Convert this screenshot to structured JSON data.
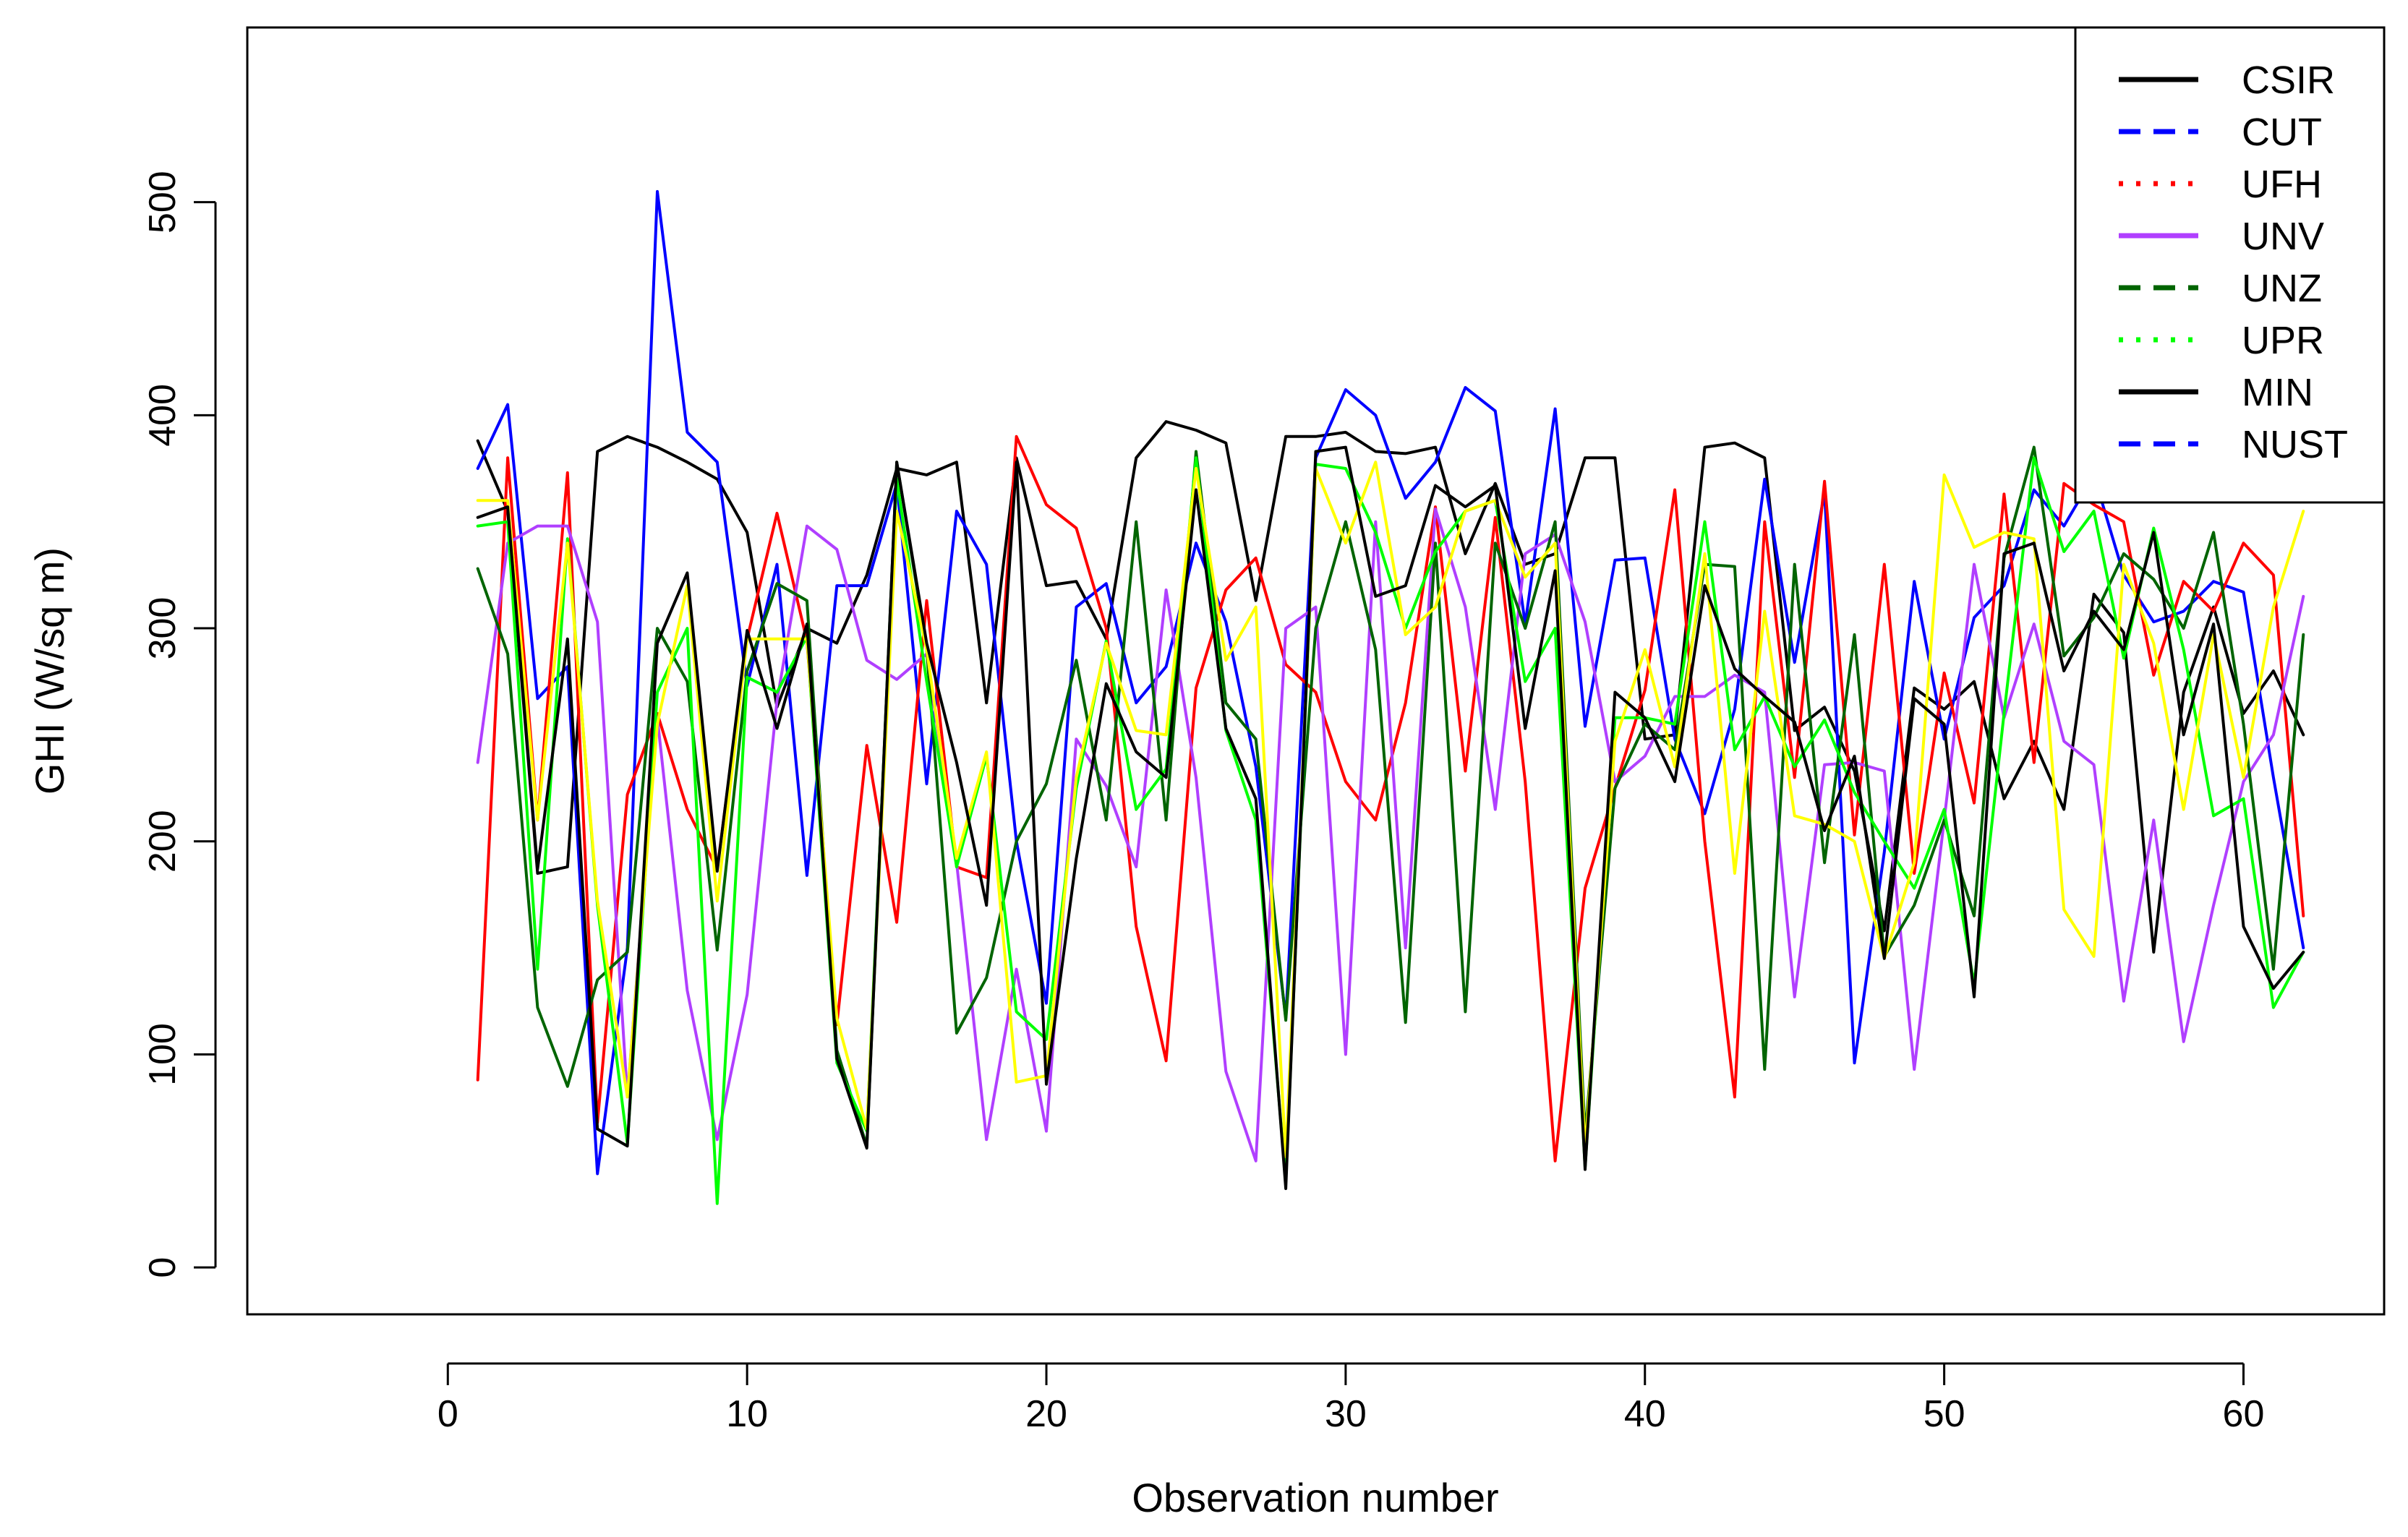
{
  "chart_data": {
    "type": "line",
    "title": "",
    "xlabel": "Observation number",
    "ylabel": "GHI (W/sq m)",
    "xlim": [
      -6.7,
      64.7
    ],
    "ylim": [
      -22,
      582
    ],
    "xticks": [
      0,
      10,
      20,
      30,
      40,
      50,
      60
    ],
    "yticks": [
      0,
      100,
      200,
      300,
      400,
      500
    ],
    "grid": false,
    "legend_position": "top-right",
    "legend": [
      {
        "name": "CSIR",
        "color": "#000000",
        "style": "solid"
      },
      {
        "name": "CUT",
        "color": "#0000ff",
        "style": "dashed"
      },
      {
        "name": "UFH",
        "color": "#ff0000",
        "style": "dotted"
      },
      {
        "name": "UNV",
        "color": "#b03fff",
        "style": "solid"
      },
      {
        "name": "UNZ",
        "color": "#006400",
        "style": "dashed"
      },
      {
        "name": "UPR",
        "color": "#00ff00",
        "style": "dotted"
      },
      {
        "name": "MIN",
        "color": "#000000",
        "style": "solid"
      },
      {
        "name": "NUST",
        "color": "#0000ff",
        "style": "dashed"
      }
    ],
    "x": [
      1,
      2,
      3,
      4,
      5,
      6,
      7,
      8,
      9,
      10,
      11,
      12,
      13,
      14,
      15,
      16,
      17,
      18,
      19,
      20,
      21,
      22,
      23,
      24,
      25,
      26,
      27,
      28,
      29,
      30,
      31,
      32,
      33,
      34,
      35,
      36,
      37,
      38,
      39,
      40,
      41,
      42,
      43,
      44,
      45,
      46,
      47,
      48,
      49,
      50,
      51,
      52,
      53,
      54,
      55,
      56,
      57,
      58,
      59,
      60,
      61,
      62
    ],
    "series": [
      {
        "name": "Black (upper)",
        "color": "#000000",
        "values": [
          388,
          355,
          185,
          188,
          383,
          390,
          385,
          378,
          370,
          345,
          263,
          300,
          293,
          325,
          375,
          372,
          378,
          265,
          380,
          320,
          322,
          295,
          380,
          397,
          393,
          387,
          313,
          390,
          390,
          392,
          383,
          382,
          385,
          335,
          368,
          330,
          335,
          380,
          380,
          248,
          250,
          385,
          387,
          380,
          252,
          263,
          233,
          158,
          272,
          262,
          275,
          220,
          247,
          215,
          316,
          298,
          148,
          270,
          310,
          260,
          280,
          250
        ]
      },
      {
        "name": "Blue",
        "color": "#0000ff",
        "values": [
          375,
          405,
          267,
          282,
          44,
          150,
          505,
          392,
          378,
          273,
          330,
          184,
          320,
          320,
          368,
          227,
          355,
          330,
          200,
          124,
          310,
          321,
          265,
          282,
          340,
          303,
          235,
          117,
          380,
          412,
          400,
          361,
          378,
          413,
          402,
          302,
          403,
          254,
          332,
          333,
          248,
          213,
          262,
          370,
          284,
          364,
          96,
          195,
          322,
          248,
          305,
          320,
          365,
          348,
          372,
          325,
          303,
          308,
          322,
          317,
          230,
          150
        ]
      },
      {
        "name": "Red",
        "color": "#ff0000",
        "values": [
          88,
          380,
          210,
          373,
          68,
          222,
          260,
          215,
          187,
          295,
          354,
          294,
          114,
          245,
          162,
          313,
          188,
          183,
          390,
          358,
          347,
          300,
          160,
          97,
          272,
          318,
          333,
          283,
          270,
          228,
          210,
          265,
          357,
          233,
          352,
          228,
          50,
          178,
          225,
          271,
          365,
          200,
          80,
          350,
          230,
          369,
          203,
          330,
          185,
          279,
          218,
          363,
          237,
          368,
          358,
          350,
          278,
          322,
          308,
          340,
          325,
          165
        ]
      },
      {
        "name": "Purple",
        "color": "#b03fff",
        "values": [
          237,
          340,
          348,
          348,
          303,
          80,
          258,
          130,
          60,
          128,
          266,
          348,
          337,
          285,
          276,
          288,
          190,
          60,
          140,
          64,
          248,
          226,
          188,
          318,
          230,
          92,
          50,
          300,
          310,
          100,
          350,
          150,
          356,
          310,
          215,
          335,
          344,
          303,
          228,
          240,
          268,
          268,
          278,
          270,
          127,
          236,
          237,
          233,
          93,
          210,
          330,
          258,
          302,
          247,
          236,
          125,
          210,
          106,
          170,
          228,
          250,
          315
        ]
      },
      {
        "name": "Dark green",
        "color": "#006400",
        "values": [
          328,
          288,
          122,
          85,
          135,
          148,
          300,
          275,
          149,
          280,
          321,
          313,
          102,
          57,
          378,
          290,
          110,
          136,
          200,
          227,
          285,
          210,
          350,
          210,
          383,
          265,
          248,
          116,
          300,
          350,
          290,
          115,
          340,
          120,
          340,
          300,
          350,
          62,
          225,
          255,
          243,
          330,
          329,
          93,
          330,
          190,
          297,
          146,
          170,
          210,
          165,
          333,
          385,
          287,
          305,
          335,
          323,
          300,
          345,
          255,
          140,
          297
        ]
      },
      {
        "name": "Bright green",
        "color": "#00ff00",
        "values": [
          348,
          350,
          140,
          342,
          170,
          58,
          270,
          300,
          30,
          277,
          270,
          296,
          96,
          64,
          370,
          275,
          188,
          240,
          120,
          107,
          225,
          294,
          215,
          234,
          380,
          252,
          210,
          40,
          377,
          375,
          345,
          300,
          336,
          355,
          360,
          275,
          300,
          47,
          258,
          258,
          255,
          350,
          243,
          268,
          235,
          257,
          223,
          200,
          178,
          215,
          133,
          260,
          380,
          336,
          355,
          286,
          347,
          290,
          212,
          220,
          122,
          148
        ]
      },
      {
        "name": "Yellow",
        "color": "#ffff00",
        "values": [
          360,
          360,
          210,
          340,
          172,
          80,
          255,
          320,
          172,
          295,
          295,
          295,
          117,
          65,
          355,
          290,
          192,
          242,
          87,
          90,
          230,
          293,
          252,
          250,
          375,
          285,
          310,
          52,
          375,
          340,
          378,
          297,
          310,
          355,
          360,
          324,
          340,
          55,
          247,
          290,
          235,
          335,
          185,
          308,
          212,
          208,
          200,
          145,
          190,
          372,
          338,
          345,
          342,
          168,
          146,
          330,
          293,
          215,
          297,
          230,
          310,
          355
        ]
      },
      {
        "name": "Black (lower)",
        "color": "#000000",
        "values": [
          352,
          357,
          187,
          295,
          65,
          57,
          293,
          326,
          186,
          299,
          253,
          302,
          98,
          56,
          378,
          293,
          237,
          170,
          378,
          86,
          192,
          274,
          242,
          230,
          365,
          253,
          220,
          37,
          383,
          385,
          315,
          320,
          367,
          357,
          367,
          253,
          327,
          46,
          270,
          258,
          228,
          320,
          281,
          268,
          256,
          205,
          240,
          145,
          267,
          255,
          127,
          335,
          340,
          280,
          308,
          290,
          345,
          250,
          302,
          160,
          131,
          148
        ]
      }
    ]
  }
}
